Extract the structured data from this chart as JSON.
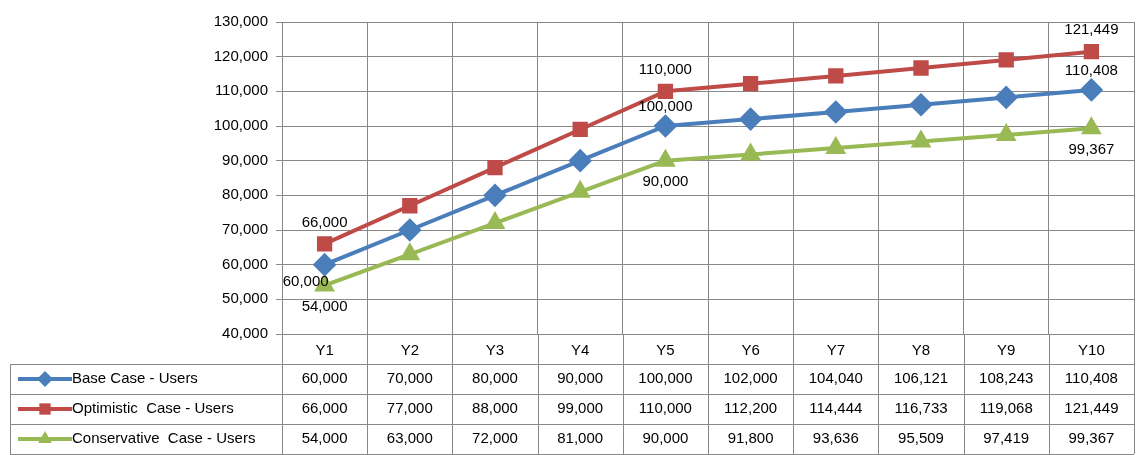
{
  "chart_data": {
    "type": "line",
    "categories": [
      "Y1",
      "Y2",
      "Y3",
      "Y4",
      "Y5",
      "Y6",
      "Y7",
      "Y8",
      "Y9",
      "Y10"
    ],
    "series": [
      {
        "name": "Base Case - Users",
        "color": "#4a7ebb",
        "marker": "diamond",
        "values": [
          60000,
          70000,
          80000,
          90000,
          100000,
          102000,
          104040,
          106121,
          108243,
          110408
        ],
        "value_labels": [
          "60,000",
          "70,000",
          "80,000",
          "90,000",
          "100,000",
          "102,000",
          "104,040",
          "106,121",
          "108,243",
          "110,408"
        ]
      },
      {
        "name": "Optimistic  Case - Users",
        "color": "#be4b48",
        "marker": "square",
        "values": [
          66000,
          77000,
          88000,
          99000,
          110000,
          112200,
          114444,
          116733,
          119068,
          121449
        ],
        "value_labels": [
          "66,000",
          "77,000",
          "88,000",
          "99,000",
          "110,000",
          "112,200",
          "114,444",
          "116,733",
          "119,068",
          "121,449"
        ]
      },
      {
        "name": "Conservative  Case - Users",
        "color": "#98b954",
        "marker": "triangle",
        "values": [
          54000,
          63000,
          72000,
          81000,
          90000,
          91800,
          93636,
          95509,
          97419,
          99367
        ],
        "value_labels": [
          "54,000",
          "63,000",
          "72,000",
          "81,000",
          "90,000",
          "91,800",
          "93,636",
          "95,509",
          "97,419",
          "99,367"
        ]
      }
    ],
    "annotations": [
      {
        "text": "66,000",
        "x": "Y1",
        "y": 66000
      },
      {
        "text": "60,000",
        "x": "Y1",
        "y": 60000
      },
      {
        "text": "54,000",
        "x": "Y1",
        "y": 54000
      },
      {
        "text": "110,000",
        "x": "Y5",
        "y": 110000
      },
      {
        "text": "100,000",
        "x": "Y5",
        "y": 100000
      },
      {
        "text": "90,000",
        "x": "Y5",
        "y": 90000
      },
      {
        "text": "121,449",
        "x": "Y10",
        "y": 121449
      },
      {
        "text": "110,408",
        "x": "Y10",
        "y": 110408
      },
      {
        "text": "99,367",
        "x": "Y10",
        "y": 99367
      }
    ],
    "ylim": [
      40000,
      130000
    ],
    "yticks": [
      {
        "value": 40000,
        "label": "40,000"
      },
      {
        "value": 50000,
        "label": "50,000"
      },
      {
        "value": 60000,
        "label": "60,000"
      },
      {
        "value": 70000,
        "label": "70,000"
      },
      {
        "value": 80000,
        "label": "80,000"
      },
      {
        "value": 90000,
        "label": "90,000"
      },
      {
        "value": 100000,
        "label": "100,000"
      },
      {
        "value": 110000,
        "label": "110,000"
      },
      {
        "value": 120000,
        "label": "120,000"
      },
      {
        "value": 130000,
        "label": "130,000"
      }
    ],
    "grid": true,
    "legend": "bottom",
    "line_style": "solid"
  }
}
